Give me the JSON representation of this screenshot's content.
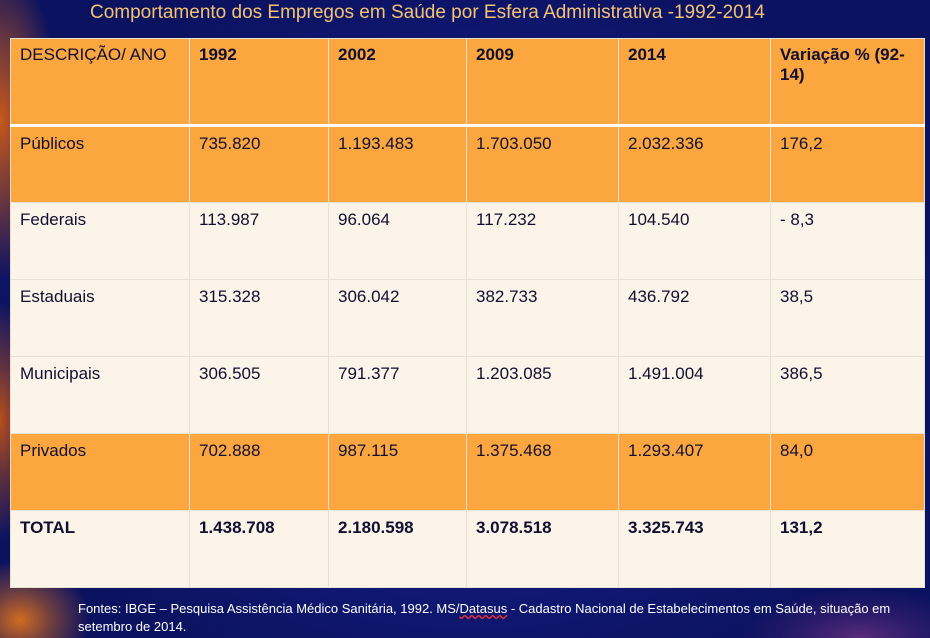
{
  "title": "Comportamento dos Empregos em Saúde por Esfera Administrativa -1992-2014",
  "table": {
    "headers": [
      "DESCRIÇÃO/ ANO",
      "1992",
      "2002",
      "2009",
      "2014",
      "Variação % (92-14)"
    ],
    "rows": [
      [
        "Públicos",
        "735.820",
        "1.193.483",
        "1.703.050",
        "2.032.336",
        "176,2"
      ],
      [
        "Federais",
        "113.987",
        "96.064",
        "117.232",
        "104.540",
        "- 8,3"
      ],
      [
        "Estaduais",
        "315.328",
        "306.042",
        "382.733",
        "436.792",
        "38,5"
      ],
      [
        "Municipais",
        "306.505",
        "791.377",
        "1.203.085",
        "1.491.004",
        "386,5"
      ],
      [
        "Privados",
        "702.888",
        "987.115",
        "1.375.468",
        "1.293.407",
        "84,0"
      ],
      [
        "TOTAL",
        "1.438.708",
        "2.180.598",
        "3.078.518",
        "3.325.743",
        "131,2"
      ]
    ]
  },
  "footer": {
    "part1": "Fontes: IBGE – Pesquisa Assistência Médico Sanitária, 1992. MS/",
    "datasus": "Datasus",
    "part2": " -  Cadastro Nacional de Estabelecimentos em Saúde, situação em setembro de 2014."
  },
  "colors": {
    "background": "#0d1566",
    "title": "#f3c272",
    "orange_row": "#fba63f",
    "light_row": "#fcf3e9"
  }
}
